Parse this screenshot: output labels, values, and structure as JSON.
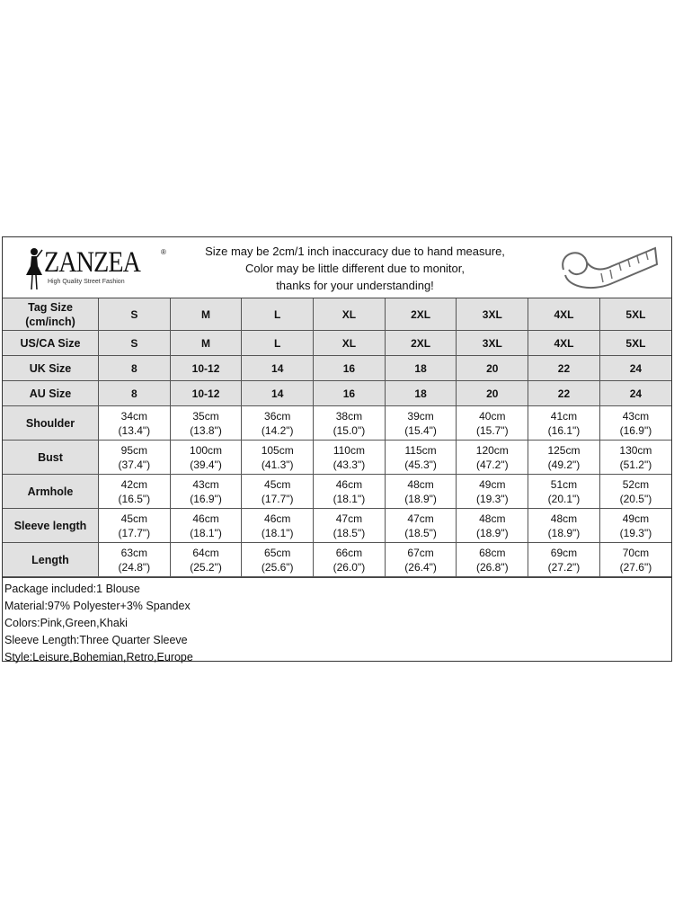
{
  "brand": {
    "name": "ZANZEA",
    "registered": "®",
    "tagline": "High Quality Street Fashion"
  },
  "notice": [
    "Size may be 2cm/1 inch inaccuracy due to hand measure,",
    "Color may be little different due to monitor,",
    "thanks for your understanding!"
  ],
  "size_rows": [
    {
      "label": "Tag Size (cm/inch)",
      "values": [
        "S",
        "M",
        "L",
        "XL",
        "2XL",
        "3XL",
        "4XL",
        "5XL"
      ]
    },
    {
      "label": "US/CA Size",
      "values": [
        "S",
        "M",
        "L",
        "XL",
        "2XL",
        "3XL",
        "4XL",
        "5XL"
      ]
    },
    {
      "label": "UK Size",
      "values": [
        "8",
        "10-12",
        "14",
        "16",
        "18",
        "20",
        "22",
        "24"
      ]
    },
    {
      "label": "AU Size",
      "values": [
        "8",
        "10-12",
        "14",
        "16",
        "18",
        "20",
        "22",
        "24"
      ]
    }
  ],
  "measure_rows": [
    {
      "label": "Shoulder",
      "cm": [
        "34cm",
        "35cm",
        "36cm",
        "38cm",
        "39cm",
        "40cm",
        "41cm",
        "43cm"
      ],
      "inch": [
        "(13.4\")",
        "(13.8\")",
        "(14.2\")",
        "(15.0\")",
        "(15.4\")",
        "(15.7\")",
        "(16.1\")",
        "(16.9\")"
      ]
    },
    {
      "label": "Bust",
      "cm": [
        "95cm",
        "100cm",
        "105cm",
        "110cm",
        "115cm",
        "120cm",
        "125cm",
        "130cm"
      ],
      "inch": [
        "(37.4\")",
        "(39.4\")",
        "(41.3\")",
        "(43.3\")",
        "(45.3\")",
        "(47.2\")",
        "(49.2\")",
        "(51.2\")"
      ]
    },
    {
      "label": "Armhole",
      "cm": [
        "42cm",
        "43cm",
        "45cm",
        "46cm",
        "48cm",
        "49cm",
        "51cm",
        "52cm"
      ],
      "inch": [
        "(16.5\")",
        "(16.9\")",
        "(17.7\")",
        "(18.1\")",
        "(18.9\")",
        "(19.3\")",
        "(20.1\")",
        "(20.5\")"
      ]
    },
    {
      "label": "Sleeve length",
      "cm": [
        "45cm",
        "46cm",
        "46cm",
        "47cm",
        "47cm",
        "48cm",
        "48cm",
        "49cm"
      ],
      "inch": [
        "(17.7\")",
        "(18.1\")",
        "(18.1\")",
        "(18.5\")",
        "(18.5\")",
        "(18.9\")",
        "(18.9\")",
        "(19.3\")"
      ]
    },
    {
      "label": "Length",
      "cm": [
        "63cm",
        "64cm",
        "65cm",
        "66cm",
        "67cm",
        "68cm",
        "69cm",
        "70cm"
      ],
      "inch": [
        "(24.8\")",
        "(25.2\")",
        "(25.6\")",
        "(26.0\")",
        "(26.4\")",
        "(26.8\")",
        "(27.2\")",
        "(27.6\")"
      ]
    }
  ],
  "details": [
    "Package included:1 Blouse",
    "Material:97% Polyester+3% Spandex",
    "Colors:Pink,Green,Khaki",
    "Sleeve Length:Three Quarter Sleeve",
    "Style:Leisure,Bohemian,Retro,Europe"
  ]
}
